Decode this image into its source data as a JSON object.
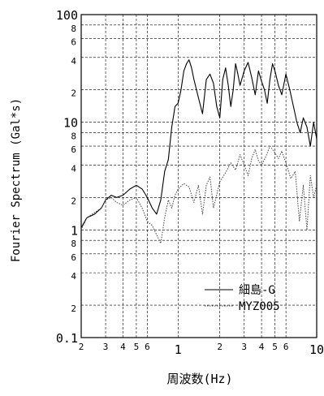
{
  "chart_data": {
    "type": "line",
    "xlabel": "周波数(Hz)",
    "ylabel": "Fourier Spectrum (Gal*s)",
    "x_scale": "log",
    "y_scale": "log",
    "xlim": [
      0.2,
      10
    ],
    "ylim": [
      0.1,
      100
    ],
    "grid": true,
    "legend_position": "bottom-right",
    "x_ticks": [
      {
        "v": 0.2,
        "t": "2",
        "major": false
      },
      {
        "v": 0.3,
        "t": "3",
        "major": false
      },
      {
        "v": 0.4,
        "t": "4",
        "major": false
      },
      {
        "v": 0.5,
        "t": "5",
        "major": false
      },
      {
        "v": 0.6,
        "t": "6",
        "major": false
      },
      {
        "v": 1,
        "t": "1",
        "major": true
      },
      {
        "v": 2,
        "t": "2",
        "major": false
      },
      {
        "v": 3,
        "t": "3",
        "major": false
      },
      {
        "v": 4,
        "t": "4",
        "major": false
      },
      {
        "v": 5,
        "t": "5",
        "major": false
      },
      {
        "v": 6,
        "t": "6",
        "major": false
      },
      {
        "v": 10,
        "t": "10",
        "major": true
      }
    ],
    "y_ticks": [
      {
        "v": 0.1,
        "t": "0.1",
        "major": true
      },
      {
        "v": 0.2,
        "t": "2",
        "major": false
      },
      {
        "v": 0.4,
        "t": "4",
        "major": false
      },
      {
        "v": 0.6,
        "t": "6",
        "major": false
      },
      {
        "v": 0.8,
        "t": "8",
        "major": false
      },
      {
        "v": 1,
        "t": "1",
        "major": true
      },
      {
        "v": 2,
        "t": "2",
        "major": false
      },
      {
        "v": 4,
        "t": "4",
        "major": false
      },
      {
        "v": 6,
        "t": "6",
        "major": false
      },
      {
        "v": 8,
        "t": "8",
        "major": false
      },
      {
        "v": 10,
        "t": "10",
        "major": true
      },
      {
        "v": 20,
        "t": "2",
        "major": false
      },
      {
        "v": 40,
        "t": "4",
        "major": false
      },
      {
        "v": 60,
        "t": "6",
        "major": false
      },
      {
        "v": 80,
        "t": "8",
        "major": false
      },
      {
        "v": 100,
        "t": "100",
        "major": true
      }
    ],
    "series": [
      {
        "name": "細島-G",
        "style": "solid",
        "color": "#000000",
        "x": [
          0.2,
          0.22,
          0.25,
          0.28,
          0.3,
          0.33,
          0.36,
          0.4,
          0.45,
          0.5,
          0.55,
          0.6,
          0.65,
          0.7,
          0.75,
          0.8,
          0.85,
          0.9,
          0.95,
          1.0,
          1.05,
          1.1,
          1.15,
          1.2,
          1.25,
          1.3,
          1.4,
          1.5,
          1.6,
          1.7,
          1.8,
          1.9,
          2.0,
          2.1,
          2.2,
          2.3,
          2.4,
          2.5,
          2.6,
          2.7,
          2.8,
          3.0,
          3.2,
          3.4,
          3.6,
          3.8,
          4.0,
          4.2,
          4.4,
          4.6,
          4.8,
          5.0,
          5.3,
          5.6,
          6.0,
          6.4,
          6.8,
          7.2,
          7.6,
          8.0,
          8.5,
          9.0,
          9.5,
          10.0
        ],
        "y": [
          1.05,
          1.3,
          1.4,
          1.6,
          1.9,
          2.1,
          2.0,
          2.1,
          2.4,
          2.6,
          2.4,
          2.0,
          1.6,
          1.4,
          1.9,
          3.5,
          4.5,
          9,
          14,
          15,
          20,
          30,
          35,
          38,
          32,
          25,
          17,
          12,
          25,
          28,
          23,
          14,
          11,
          25,
          32,
          22,
          14,
          20,
          35,
          28,
          22,
          30,
          36,
          26,
          18,
          30,
          24,
          20,
          15,
          25,
          35,
          30,
          22,
          18,
          28,
          20,
          14,
          10,
          8,
          11,
          9,
          6,
          10,
          7
        ]
      },
      {
        "name": "MYZ005",
        "style": "dotted",
        "color": "#444444",
        "x": [
          0.2,
          0.22,
          0.25,
          0.28,
          0.3,
          0.33,
          0.36,
          0.4,
          0.45,
          0.5,
          0.55,
          0.6,
          0.65,
          0.7,
          0.75,
          0.8,
          0.85,
          0.9,
          0.95,
          1.0,
          1.1,
          1.2,
          1.3,
          1.4,
          1.5,
          1.6,
          1.7,
          1.8,
          2.0,
          2.2,
          2.4,
          2.6,
          2.8,
          3.0,
          3.2,
          3.4,
          3.6,
          3.8,
          4.0,
          4.3,
          4.6,
          5.0,
          5.3,
          5.6,
          6.0,
          6.5,
          7.0,
          7.5,
          8.0,
          8.5,
          9.0,
          9.5,
          10.0
        ],
        "y": [
          1.0,
          1.3,
          1.45,
          1.6,
          1.9,
          2.0,
          1.8,
          1.7,
          1.9,
          2.0,
          1.6,
          1.2,
          1.1,
          0.9,
          0.75,
          1.3,
          1.9,
          1.6,
          2.1,
          2.4,
          2.7,
          2.5,
          1.8,
          2.6,
          1.4,
          2.6,
          3.1,
          1.6,
          2.8,
          3.4,
          4.2,
          3.6,
          5.0,
          4.0,
          3.2,
          4.6,
          5.6,
          4.4,
          4.0,
          4.8,
          6.0,
          5.2,
          4.6,
          5.4,
          4.2,
          3.0,
          3.5,
          1.2,
          2.6,
          1.0,
          3.2,
          2.0,
          2.6
        ]
      }
    ]
  }
}
